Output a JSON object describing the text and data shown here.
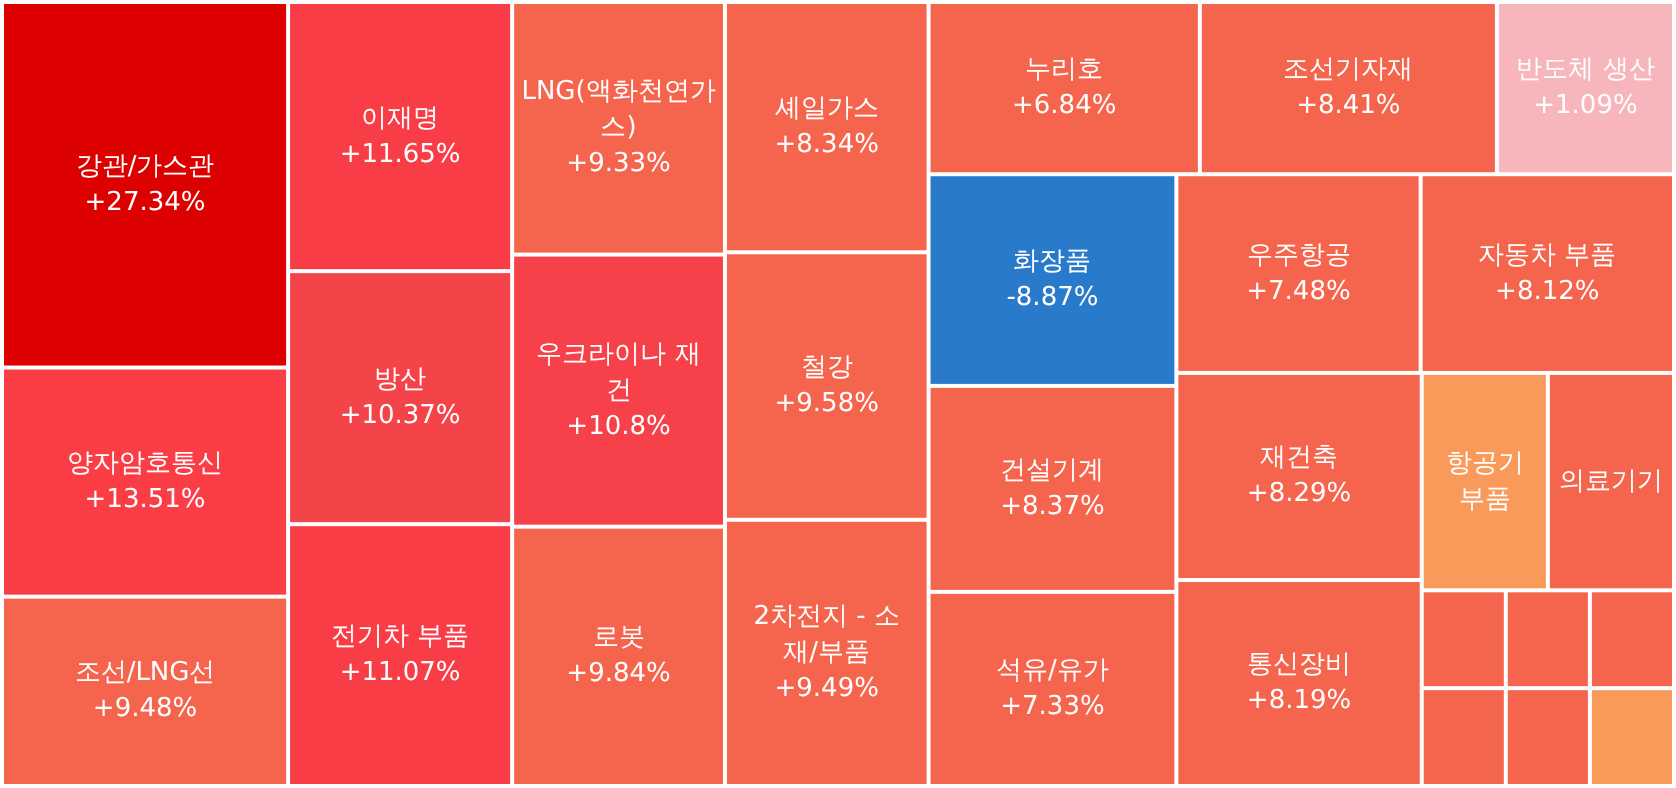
{
  "chart_data": {
    "type": "other",
    "categories": [
      "강관/가스관",
      "양자암호통신",
      "조선/LNG선",
      "이재명",
      "방산",
      "전기차 부품",
      "LNG(액화천연가스)",
      "우크라이나 재건",
      "로봇",
      "셰일가스",
      "철강",
      "2차전지 - 소재/부품",
      "누리호",
      "조선기자재",
      "반도체 생산",
      "화장품",
      "건설기계",
      "석유/유가",
      "우주항공",
      "자동차 부품",
      "재건축",
      "통신장비",
      "항공기 부품",
      "의료기기",
      null,
      null,
      null,
      null,
      null,
      null
    ],
    "values": [
      27.34,
      13.51,
      9.48,
      11.65,
      10.37,
      11.07,
      9.33,
      10.8,
      9.84,
      8.34,
      9.58,
      9.49,
      6.84,
      8.41,
      1.09,
      -8.87,
      8.37,
      7.33,
      7.48,
      8.12,
      8.29,
      8.19,
      null,
      null,
      null,
      null,
      null,
      null,
      null,
      null
    ],
    "value_labels": [
      "+27.34%",
      "+13.51%",
      "+9.48%",
      "+11.65%",
      "+10.37%",
      "+11.07%",
      "+9.33%",
      "+10.8%",
      "+9.84%",
      "+8.34%",
      "+9.58%",
      "+9.49%",
      "+6.84%",
      "+8.41%",
      "+1.09%",
      "-8.87%",
      "+8.37%",
      "+7.33%",
      "+7.48%",
      "+8.12%",
      "+8.29%",
      "+8.19%",
      null,
      null,
      null,
      null,
      null,
      null,
      null,
      null
    ],
    "colors": [
      "#dc0000",
      "#fb3e46",
      "#f5654e",
      "#f93d46",
      "#f5434a",
      "#f83d47",
      "#f5654e",
      "#f6404a",
      "#f5654e",
      "#f5654e",
      "#f5654e",
      "#f5654e",
      "#f5654e",
      "#f5654e",
      "#f6b6bc",
      "#2a7acb",
      "#f5654e",
      "#f5654e",
      "#f5654e",
      "#f5654e",
      "#f5654e",
      "#f5654e",
      "#f99a5b",
      "#f5654e",
      "#f5654e",
      "#f5654e",
      "#f5654e",
      "#f5654e",
      "#f5654e",
      "#f99a5b"
    ]
  }
}
